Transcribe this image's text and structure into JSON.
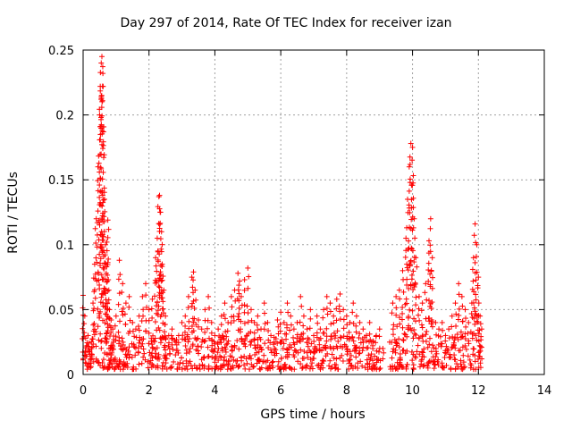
{
  "chart_data": {
    "type": "scatter",
    "title": "Day 297 of 2014, Rate Of TEC Index for receiver izan",
    "xlabel": "GPS time / hours",
    "ylabel": "ROTI / TECUs",
    "xlim": [
      0,
      14
    ],
    "ylim": [
      0,
      0.25
    ],
    "xticks": [
      0,
      2,
      4,
      6,
      8,
      10,
      12,
      14
    ],
    "yticks": [
      0,
      0.05,
      0.1,
      0.15,
      0.2,
      0.25
    ],
    "ytick_labels": [
      "0",
      "0.05",
      "0.1",
      "0.15",
      "0.2",
      "0.25"
    ],
    "grid": true,
    "marker": "+",
    "marker_color": "#ff0000",
    "series": [
      {
        "x": [
          0.0,
          0.05,
          0.1,
          0.15,
          0.2,
          0.25,
          0.3,
          0.35,
          0.4,
          0.45,
          0.5,
          0.52,
          0.55,
          0.57,
          0.6,
          0.62,
          0.65,
          0.68,
          0.7,
          0.72,
          0.75,
          0.78,
          0.8,
          0.85,
          0.9,
          1.0,
          1.1,
          1.2,
          1.3,
          1.4,
          1.5,
          1.6,
          1.7,
          1.8,
          1.9,
          2.0,
          2.1,
          2.2,
          2.25,
          2.3,
          2.32,
          2.35,
          2.38,
          2.4,
          2.45,
          2.5,
          2.6,
          2.7,
          2.8,
          2.9,
          3.0,
          3.1,
          3.2,
          3.3,
          3.35,
          3.4,
          3.5,
          3.6,
          3.7,
          3.8,
          3.9,
          4.0,
          4.1,
          4.2,
          4.3,
          4.4,
          4.5,
          4.6,
          4.7,
          4.75,
          4.8,
          4.9,
          5.0,
          5.1,
          5.2,
          5.3,
          5.4,
          5.5,
          5.6,
          5.7,
          5.8,
          5.9,
          6.0,
          6.1,
          6.2,
          6.3,
          6.4,
          6.5,
          6.6,
          6.7,
          6.8,
          6.9,
          7.0,
          7.1,
          7.2,
          7.3,
          7.4,
          7.5,
          7.6,
          7.7,
          7.8,
          7.9,
          8.0,
          8.1,
          8.2,
          8.3,
          8.4,
          8.5,
          8.6,
          8.7,
          8.8,
          8.9,
          9.0,
          9.1,
          9.4,
          9.5,
          9.6,
          9.7,
          9.8,
          9.85,
          9.9,
          9.95,
          10.0,
          10.05,
          10.1,
          10.2,
          10.3,
          10.4,
          10.5,
          10.55,
          10.6,
          10.7,
          10.8,
          10.9,
          11.0,
          11.1,
          11.2,
          11.3,
          11.4,
          11.5,
          11.6,
          11.7,
          11.8,
          11.85,
          11.9,
          11.95,
          12.0,
          12.05,
          12.1
        ],
        "y": [
          0.061,
          0.045,
          0.022,
          0.03,
          0.018,
          0.025,
          0.055,
          0.085,
          0.12,
          0.16,
          0.2,
          0.222,
          0.24,
          0.245,
          0.232,
          0.187,
          0.135,
          0.1,
          0.078,
          0.102,
          0.119,
          0.065,
          0.05,
          0.042,
          0.035,
          0.045,
          0.088,
          0.07,
          0.055,
          0.06,
          0.04,
          0.035,
          0.045,
          0.06,
          0.07,
          0.05,
          0.058,
          0.09,
          0.105,
          0.137,
          0.138,
          0.125,
          0.11,
          0.085,
          0.065,
          0.045,
          0.03,
          0.035,
          0.025,
          0.03,
          0.04,
          0.045,
          0.06,
          0.075,
          0.079,
          0.065,
          0.042,
          0.035,
          0.05,
          0.06,
          0.04,
          0.03,
          0.035,
          0.045,
          0.055,
          0.04,
          0.06,
          0.065,
          0.078,
          0.072,
          0.06,
          0.073,
          0.082,
          0.05,
          0.04,
          0.045,
          0.035,
          0.055,
          0.04,
          0.03,
          0.025,
          0.042,
          0.048,
          0.04,
          0.055,
          0.045,
          0.035,
          0.04,
          0.06,
          0.045,
          0.035,
          0.05,
          0.03,
          0.045,
          0.035,
          0.05,
          0.06,
          0.055,
          0.045,
          0.058,
          0.062,
          0.05,
          0.045,
          0.04,
          0.055,
          0.045,
          0.04,
          0.035,
          0.03,
          0.04,
          0.025,
          0.03,
          0.035,
          0.02,
          0.055,
          0.06,
          0.065,
          0.08,
          0.105,
          0.135,
          0.16,
          0.178,
          0.175,
          0.12,
          0.09,
          0.06,
          0.055,
          0.07,
          0.103,
          0.12,
          0.09,
          0.04,
          0.035,
          0.04,
          0.03,
          0.035,
          0.045,
          0.055,
          0.07,
          0.06,
          0.05,
          0.04,
          0.055,
          0.09,
          0.116,
          0.1,
          0.075,
          0.045,
          0.035
        ]
      }
    ],
    "bands": [
      {
        "x_start": 0.0,
        "x_end": 9.1,
        "y_min": 0.004,
        "y_max": 0.03
      },
      {
        "x_start": 9.3,
        "x_end": 12.1,
        "y_min": 0.004,
        "y_max": 0.032
      }
    ]
  }
}
